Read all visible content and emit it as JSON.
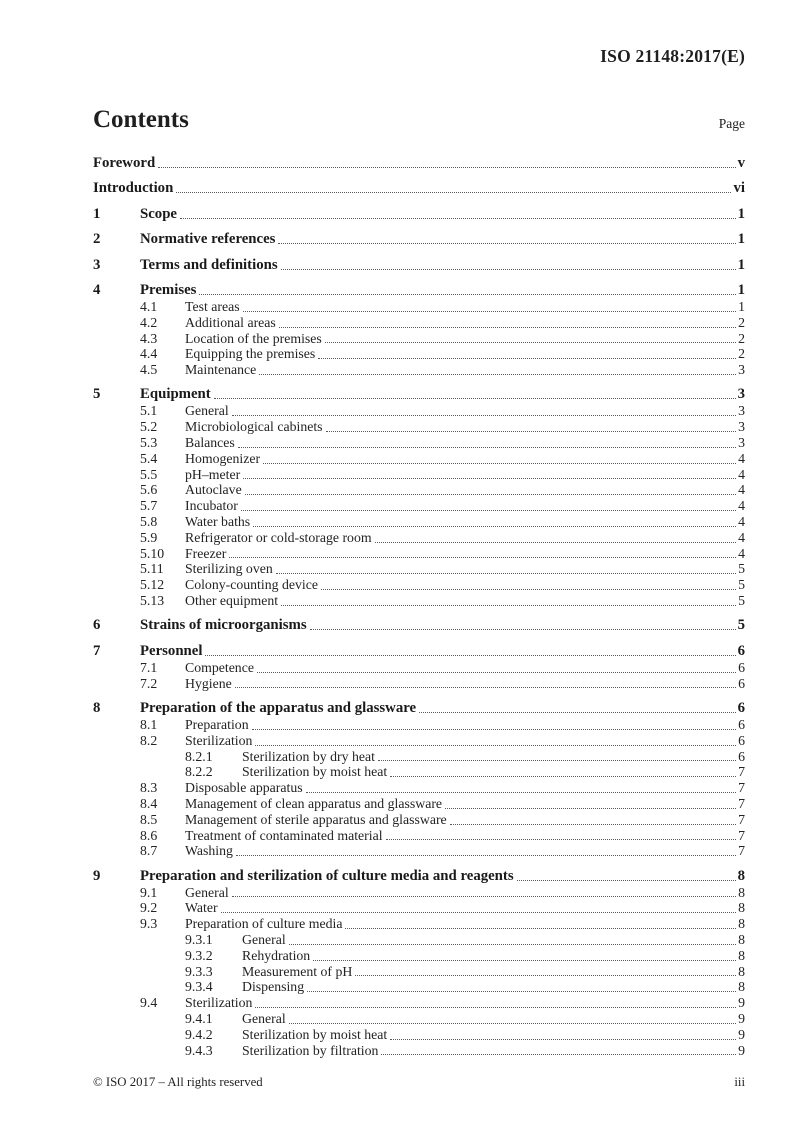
{
  "header": {
    "doc_ref": "ISO 21148:2017(E)"
  },
  "contents": {
    "title": "Contents",
    "page_label": "Page"
  },
  "toc": [
    {
      "level": 0,
      "num": "",
      "label": "Foreword",
      "page": "v"
    },
    {
      "level": 0,
      "num": "",
      "label": "Introduction",
      "page": "vi"
    },
    {
      "level": 1,
      "num": "1",
      "label": "Scope",
      "page": "1"
    },
    {
      "level": 1,
      "num": "2",
      "label": "Normative references",
      "page": "1"
    },
    {
      "level": 1,
      "num": "3",
      "label": "Terms and definitions",
      "page": "1"
    },
    {
      "level": 1,
      "num": "4",
      "label": "Premises",
      "page": "1"
    },
    {
      "level": 2,
      "num": "4.1",
      "label": "Test areas",
      "page": "1"
    },
    {
      "level": 2,
      "num": "4.2",
      "label": "Additional areas",
      "page": "2"
    },
    {
      "level": 2,
      "num": "4.3",
      "label": "Location of the premises",
      "page": "2"
    },
    {
      "level": 2,
      "num": "4.4",
      "label": "Equipping the premises",
      "page": "2"
    },
    {
      "level": 2,
      "num": "4.5",
      "label": "Maintenance",
      "page": "3"
    },
    {
      "level": 1,
      "num": "5",
      "label": "Equipment",
      "page": "3"
    },
    {
      "level": 2,
      "num": "5.1",
      "label": "General",
      "page": "3"
    },
    {
      "level": 2,
      "num": "5.2",
      "label": "Microbiological cabinets",
      "page": "3"
    },
    {
      "level": 2,
      "num": "5.3",
      "label": "Balances",
      "page": "3"
    },
    {
      "level": 2,
      "num": "5.4",
      "label": "Homogenizer",
      "page": "4"
    },
    {
      "level": 2,
      "num": "5.5",
      "label": "pH–meter",
      "page": "4"
    },
    {
      "level": 2,
      "num": "5.6",
      "label": "Autoclave",
      "page": "4"
    },
    {
      "level": 2,
      "num": "5.7",
      "label": "Incubator",
      "page": "4"
    },
    {
      "level": 2,
      "num": "5.8",
      "label": "Water baths",
      "page": "4"
    },
    {
      "level": 2,
      "num": "5.9",
      "label": "Refrigerator or cold-storage room",
      "page": "4"
    },
    {
      "level": 2,
      "num": "5.10",
      "label": "Freezer",
      "page": "4"
    },
    {
      "level": 2,
      "num": "5.11",
      "label": "Sterilizing oven",
      "page": "5"
    },
    {
      "level": 2,
      "num": "5.12",
      "label": "Colony-counting device",
      "page": "5"
    },
    {
      "level": 2,
      "num": "5.13",
      "label": "Other equipment",
      "page": "5"
    },
    {
      "level": 1,
      "num": "6",
      "label": "Strains of microorganisms",
      "page": "5"
    },
    {
      "level": 1,
      "num": "7",
      "label": "Personnel",
      "page": "6"
    },
    {
      "level": 2,
      "num": "7.1",
      "label": "Competence",
      "page": "6"
    },
    {
      "level": 2,
      "num": "7.2",
      "label": "Hygiene",
      "page": "6"
    },
    {
      "level": 1,
      "num": "8",
      "label": "Preparation of the apparatus and glassware",
      "page": "6"
    },
    {
      "level": 2,
      "num": "8.1",
      "label": "Preparation",
      "page": "6"
    },
    {
      "level": 2,
      "num": "8.2",
      "label": "Sterilization",
      "page": "6"
    },
    {
      "level": 3,
      "num": "8.2.1",
      "label": "Sterilization by dry heat",
      "page": "6"
    },
    {
      "level": 3,
      "num": "8.2.2",
      "label": "Sterilization by moist heat",
      "page": "7"
    },
    {
      "level": 2,
      "num": "8.3",
      "label": "Disposable apparatus",
      "page": "7"
    },
    {
      "level": 2,
      "num": "8.4",
      "label": "Management of clean apparatus and glassware",
      "page": "7"
    },
    {
      "level": 2,
      "num": "8.5",
      "label": "Management of sterile apparatus and glassware",
      "page": "7"
    },
    {
      "level": 2,
      "num": "8.6",
      "label": "Treatment of contaminated material",
      "page": "7"
    },
    {
      "level": 2,
      "num": "8.7",
      "label": "Washing",
      "page": "7"
    },
    {
      "level": 1,
      "num": "9",
      "label": "Preparation and sterilization of culture media and reagents",
      "page": "8"
    },
    {
      "level": 2,
      "num": "9.1",
      "label": "General",
      "page": "8"
    },
    {
      "level": 2,
      "num": "9.2",
      "label": "Water",
      "page": "8"
    },
    {
      "level": 2,
      "num": "9.3",
      "label": "Preparation of culture media",
      "page": "8"
    },
    {
      "level": 3,
      "num": "9.3.1",
      "label": "General",
      "page": "8"
    },
    {
      "level": 3,
      "num": "9.3.2",
      "label": "Rehydration",
      "page": "8"
    },
    {
      "level": 3,
      "num": "9.3.3",
      "label": "Measurement of pH",
      "page": "8"
    },
    {
      "level": 3,
      "num": "9.3.4",
      "label": "Dispensing",
      "page": "8"
    },
    {
      "level": 2,
      "num": "9.4",
      "label": "Sterilization",
      "page": "9"
    },
    {
      "level": 3,
      "num": "9.4.1",
      "label": "General",
      "page": "9"
    },
    {
      "level": 3,
      "num": "9.4.2",
      "label": "Sterilization by moist heat",
      "page": "9"
    },
    {
      "level": 3,
      "num": "9.4.3",
      "label": "Sterilization by filtration",
      "page": "9"
    }
  ],
  "footer": {
    "copyright": "© ISO 2017 – All rights reserved",
    "page_num": "iii"
  }
}
